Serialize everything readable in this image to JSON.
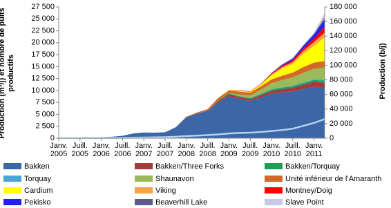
{
  "chart_data": {
    "type": "stacked-area",
    "y_title": "Production (m³/j) et nombre de puits productifs",
    "y2_title": "Production (b/j)",
    "grid": false,
    "categories": [
      "Janv. 2005",
      null,
      "Juill. 2005",
      null,
      "Janv. 2006",
      null,
      "Juill. 2006",
      null,
      "Janv. 2007",
      null,
      "Juill. 2007",
      null,
      "Janv. 2008",
      null,
      "Juill. 2008",
      null,
      "Janv. 2009",
      null,
      "Juill. 2009",
      null,
      "Janv. 2010",
      null,
      "Juill. 2010",
      null,
      "Janv. 2011",
      null
    ],
    "ylim": [
      0,
      27500
    ],
    "yticks": [
      0,
      {
        "value": 2500,
        "label": "2 500"
      },
      {
        "value": 5000,
        "label": "5 000"
      },
      {
        "value": 7500,
        "label": "7 500"
      },
      {
        "value": 10000,
        "label": "10 000"
      },
      {
        "value": 12500,
        "label": "12 500"
      },
      {
        "value": 15000,
        "label": "15 000"
      },
      {
        "value": 17500,
        "label": "17 500"
      },
      {
        "value": 20000,
        "label": "20 000"
      },
      {
        "value": 22500,
        "label": "22 500"
      },
      {
        "value": 25000,
        "label": "25 000"
      },
      {
        "value": 27500,
        "label": "27 500"
      }
    ],
    "y2lim": [
      0,
      180000
    ],
    "y2ticks": [
      0,
      {
        "value": 20000,
        "label": "20 000"
      },
      {
        "value": 40000,
        "label": "40 000"
      },
      {
        "value": 60000,
        "label": "60 000"
      },
      {
        "value": 80000,
        "label": "80 000"
      },
      {
        "value": 100000,
        "label": "100 000"
      },
      {
        "value": 120000,
        "label": "120 000"
      },
      {
        "value": 140000,
        "label": "140 000"
      },
      {
        "value": 160000,
        "label": "160 000"
      },
      {
        "value": 180000,
        "label": "180 000"
      }
    ],
    "series": [
      {
        "name": "Bakken",
        "color": "#3c67a6",
        "values": [
          50,
          60,
          80,
          100,
          200,
          300,
          500,
          1000,
          1200,
          1150,
          1250,
          2300,
          4400,
          5200,
          5700,
          7500,
          8800,
          8200,
          7800,
          8500,
          9300,
          9600,
          9800,
          10300,
          10800,
          10500
        ]
      },
      {
        "name": "Bakken/Three Forks",
        "color": "#a33b3b",
        "values": [
          0,
          0,
          0,
          0,
          0,
          0,
          0,
          0,
          0,
          0,
          0,
          0,
          0,
          0,
          100,
          300,
          400,
          400,
          400,
          500,
          600,
          700,
          800,
          900,
          1000,
          1100
        ]
      },
      {
        "name": "Bakken/Torquay",
        "color": "#1f9e57",
        "values": [
          0,
          0,
          0,
          0,
          0,
          0,
          0,
          0,
          0,
          0,
          0,
          0,
          0,
          0,
          0,
          150,
          200,
          200,
          200,
          250,
          300,
          300,
          300,
          350,
          400,
          450
        ]
      },
      {
        "name": "Torquay",
        "color": "#4aa6d6",
        "values": [
          0,
          0,
          0,
          0,
          0,
          0,
          0,
          0,
          0,
          0,
          0,
          0,
          0,
          0,
          0,
          0,
          50,
          50,
          50,
          100,
          100,
          100,
          150,
          150,
          150,
          200
        ]
      },
      {
        "name": "Shaunavon",
        "color": "#9bbb59",
        "values": [
          0,
          0,
          0,
          0,
          0,
          0,
          0,
          0,
          0,
          0,
          0,
          0,
          0,
          0,
          0,
          0,
          0,
          300,
          500,
          800,
          1200,
          1500,
          1700,
          2000,
          2200,
          2500
        ]
      },
      {
        "name": "Unité inférieur de l’Amaranth",
        "color": "#d2692a",
        "values": [
          0,
          0,
          0,
          0,
          0,
          0,
          0,
          0,
          0,
          0,
          0,
          0,
          100,
          200,
          300,
          500,
          600,
          600,
          600,
          700,
          800,
          900,
          1000,
          1200,
          1300,
          1400
        ]
      },
      {
        "name": "Cardium",
        "color": "#ffff00",
        "values": [
          0,
          0,
          0,
          0,
          0,
          0,
          0,
          0,
          0,
          0,
          0,
          0,
          0,
          0,
          0,
          0,
          100,
          150,
          200,
          400,
          900,
          1500,
          1800,
          2800,
          3500,
          5000
        ]
      },
      {
        "name": "Viking",
        "color": "#f9a244",
        "values": [
          0,
          0,
          0,
          0,
          0,
          0,
          0,
          0,
          0,
          0,
          0,
          0,
          0,
          0,
          0,
          0,
          0,
          0,
          0,
          50,
          150,
          300,
          400,
          600,
          800,
          1000
        ]
      },
      {
        "name": "Montney/Doig",
        "color": "#ff0000",
        "values": [
          0,
          0,
          0,
          0,
          0,
          0,
          0,
          0,
          0,
          0,
          0,
          0,
          0,
          0,
          0,
          0,
          0,
          100,
          100,
          100,
          200,
          300,
          400,
          500,
          700,
          1200
        ]
      },
      {
        "name": "Pekisko",
        "color": "#2222ee",
        "values": [
          0,
          0,
          0,
          0,
          0,
          0,
          0,
          0,
          0,
          0,
          0,
          0,
          0,
          0,
          0,
          0,
          0,
          0,
          0,
          0,
          100,
          200,
          300,
          500,
          800,
          1500
        ]
      },
      {
        "name": "Beaverhill Lake",
        "color": "#5c5c8c",
        "values": [
          0,
          0,
          0,
          0,
          0,
          0,
          0,
          0,
          0,
          0,
          0,
          0,
          0,
          0,
          0,
          0,
          0,
          0,
          0,
          0,
          0,
          50,
          100,
          150,
          250,
          400
        ]
      },
      {
        "name": "Slave Point",
        "color": "#c9c9e6",
        "values": [
          0,
          0,
          0,
          0,
          0,
          0,
          0,
          0,
          0,
          0,
          0,
          0,
          0,
          0,
          0,
          0,
          0,
          0,
          0,
          0,
          0,
          0,
          50,
          100,
          200,
          1000
        ]
      }
    ],
    "line": {
      "color": "#b4d3ee",
      "values": [
        0,
        0,
        10,
        20,
        40,
        60,
        80,
        100,
        150,
        180,
        220,
        300,
        450,
        550,
        650,
        800,
        1000,
        1100,
        1150,
        1300,
        1500,
        1700,
        2000,
        2600,
        3200,
        4000
      ]
    }
  }
}
